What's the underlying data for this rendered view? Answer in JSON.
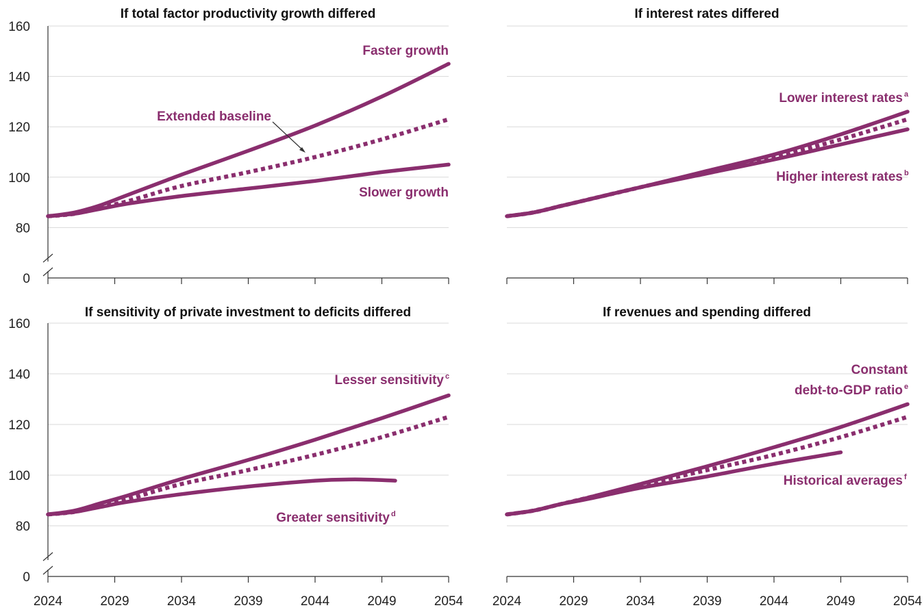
{
  "colors": {
    "series": "#8a2e6e",
    "grid": "#d9d9d9",
    "axis": "#333333",
    "text": "#222222"
  },
  "chart_data": [
    {
      "type": "line",
      "title": "If total factor productivity growth differed",
      "x_ticks": [
        "2024",
        "2029",
        "2034",
        "2039",
        "2044",
        "2049",
        "2054"
      ],
      "y_ticks": [
        "0",
        "80",
        "100",
        "120",
        "140",
        "160"
      ],
      "xlim": [
        2024,
        2054
      ],
      "ylim": [
        70,
        160
      ],
      "axis_break": true,
      "grid": "horizontal",
      "series": [
        {
          "label": "Faster growth",
          "style": "solid",
          "x": [
            2024,
            2026,
            2028,
            2030,
            2034,
            2039,
            2044,
            2049,
            2054
          ],
          "y": [
            84.5,
            86,
            89,
            93,
            101,
            110.5,
            120.5,
            132,
            145
          ]
        },
        {
          "label": "Extended baseline",
          "style": "dotted",
          "x": [
            2024,
            2026,
            2028,
            2030,
            2034,
            2039,
            2044,
            2049,
            2054
          ],
          "y": [
            84.5,
            85.5,
            88,
            90.5,
            96.5,
            102,
            108,
            115,
            123
          ]
        },
        {
          "label": "Slower growth",
          "style": "solid",
          "x": [
            2024,
            2026,
            2028,
            2030,
            2034,
            2039,
            2044,
            2049,
            2054
          ],
          "y": [
            84.5,
            85.5,
            87.5,
            89.5,
            92.5,
            95.5,
            98.5,
            102,
            105
          ]
        }
      ],
      "annotations": [
        {
          "text": "Faster growth",
          "sup": ""
        },
        {
          "text": "Extended baseline",
          "sup": ""
        },
        {
          "text": "Slower growth",
          "sup": ""
        }
      ]
    },
    {
      "type": "line",
      "title": "If interest rates differed",
      "x_ticks": [
        "2024",
        "2029",
        "2034",
        "2039",
        "2044",
        "2049",
        "2054"
      ],
      "y_ticks": [],
      "xlim": [
        2024,
        2054
      ],
      "ylim": [
        70,
        160
      ],
      "axis_break": false,
      "grid": "horizontal",
      "series": [
        {
          "label": "Lower interest rates",
          "style": "solid",
          "x": [
            2024,
            2026,
            2028,
            2030,
            2034,
            2039,
            2044,
            2049,
            2054
          ],
          "y": [
            84.5,
            86,
            88.5,
            91,
            96,
            102.5,
            109,
            117,
            126
          ]
        },
        {
          "label": "Extended baseline",
          "style": "dotted",
          "x": [
            2024,
            2026,
            2028,
            2030,
            2034,
            2039,
            2044,
            2049,
            2054
          ],
          "y": [
            84.5,
            86,
            88.5,
            91,
            96,
            102,
            108,
            115,
            123
          ]
        },
        {
          "label": "Higher interest rates",
          "style": "solid",
          "x": [
            2024,
            2026,
            2028,
            2030,
            2034,
            2039,
            2044,
            2049,
            2054
          ],
          "y": [
            84.5,
            86,
            88.5,
            91,
            96,
            101.5,
            107,
            113,
            119
          ]
        }
      ],
      "annotations": [
        {
          "text": "Lower interest rates",
          "sup": "a"
        },
        {
          "text": "Higher interest rates",
          "sup": "b"
        }
      ]
    },
    {
      "type": "line",
      "title": "If sensitivity of private investment to deficits differed",
      "x_ticks": [
        "2024",
        "2029",
        "2034",
        "2039",
        "2044",
        "2049",
        "2054"
      ],
      "y_ticks": [
        "0",
        "80",
        "100",
        "120",
        "140",
        "160"
      ],
      "xlim": [
        2024,
        2054
      ],
      "ylim": [
        70,
        160
      ],
      "axis_break": true,
      "grid": "horizontal",
      "series": [
        {
          "label": "Lesser sensitivity",
          "style": "solid",
          "x": [
            2024,
            2026,
            2028,
            2030,
            2034,
            2039,
            2044,
            2049,
            2054
          ],
          "y": [
            84.5,
            86,
            89,
            92,
            98.5,
            106,
            114,
            122.5,
            131.5
          ]
        },
        {
          "label": "Extended baseline",
          "style": "dotted",
          "x": [
            2024,
            2026,
            2028,
            2030,
            2034,
            2039,
            2044,
            2049,
            2054
          ],
          "y": [
            84.5,
            85.5,
            88,
            90.5,
            96.5,
            102,
            108,
            115,
            123
          ]
        },
        {
          "label": "Greater sensitivity",
          "style": "solid",
          "x": [
            2024,
            2026,
            2028,
            2030,
            2034,
            2039,
            2044,
            2047,
            2050
          ],
          "y": [
            84.5,
            85.5,
            87.5,
            89.5,
            92.5,
            95.5,
            97.8,
            98.3,
            97.8
          ]
        }
      ],
      "annotations": [
        {
          "text": "Lesser sensitivity",
          "sup": "c"
        },
        {
          "text": "Greater sensitivity",
          "sup": "d"
        }
      ]
    },
    {
      "type": "line",
      "title": "If revenues and spending differed",
      "x_ticks": [
        "2024",
        "2029",
        "2034",
        "2039",
        "2044",
        "2049",
        "2054"
      ],
      "y_ticks": [],
      "xlim": [
        2024,
        2054
      ],
      "ylim": [
        70,
        160
      ],
      "axis_break": false,
      "grid": "horizontal",
      "series": [
        {
          "label": "Constant debt-to-GDP ratio",
          "style": "solid",
          "x": [
            2024,
            2026,
            2028,
            2030,
            2034,
            2039,
            2044,
            2049,
            2054
          ],
          "y": [
            84.5,
            86,
            88.5,
            91,
            96.5,
            103.5,
            111,
            119,
            128
          ]
        },
        {
          "label": "Extended baseline",
          "style": "dotted",
          "x": [
            2024,
            2026,
            2028,
            2030,
            2034,
            2039,
            2044,
            2049,
            2054
          ],
          "y": [
            84.5,
            86,
            88.5,
            91,
            96,
            102,
            108,
            115,
            123
          ]
        },
        {
          "label": "Historical averages",
          "style": "solid",
          "x": [
            2024,
            2026,
            2028,
            2030,
            2034,
            2039,
            2044,
            2049
          ],
          "y": [
            84.5,
            86,
            88.5,
            90.5,
            95,
            99.5,
            104.5,
            109
          ]
        }
      ],
      "annotations": [
        {
          "text": "Constant",
          "sup": ""
        },
        {
          "text": "debt-to-GDP ratio",
          "sup": "e"
        },
        {
          "text": "Historical averages",
          "sup": "f"
        }
      ]
    }
  ]
}
